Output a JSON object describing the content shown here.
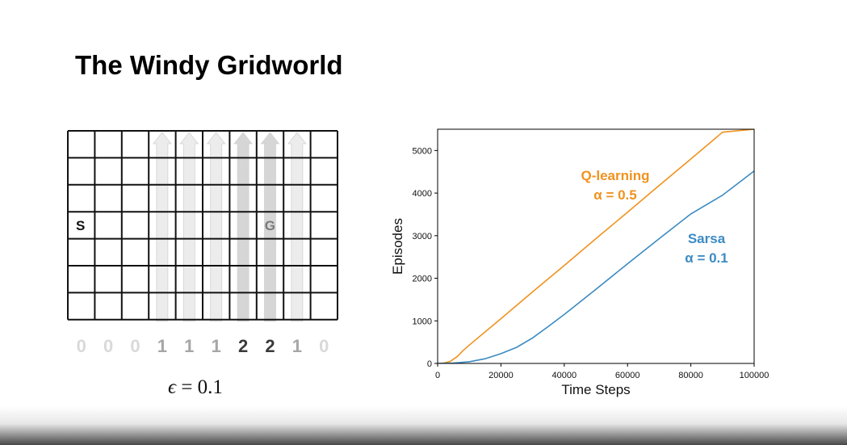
{
  "slide": {
    "title": "The Windy Gridworld"
  },
  "gridworld": {
    "rows": 7,
    "cols": 10,
    "start": {
      "label": "S",
      "row": 3,
      "col": 0
    },
    "goal": {
      "label": "G",
      "row": 3,
      "col": 7
    },
    "wind": [
      0,
      0,
      0,
      1,
      1,
      1,
      2,
      2,
      1,
      0
    ],
    "wind_colors": {
      "0": "#d9d9d9",
      "1": "#a6a6a6",
      "2": "#3a3a3a"
    },
    "arrow_colors": {
      "1": "#ececec",
      "2": "#d4d4d4"
    }
  },
  "epsilon": {
    "symbol": "ϵ",
    "text": " = 0.1"
  },
  "chart_data": {
    "type": "line",
    "xlabel": "Time Steps",
    "ylabel": "Episodes",
    "xlim": [
      0,
      100000
    ],
    "ylim": [
      0,
      5500
    ],
    "xticks": [
      0,
      20000,
      40000,
      60000,
      80000,
      100000
    ],
    "yticks": [
      0,
      1000,
      2000,
      3000,
      4000,
      5000
    ],
    "grid": false,
    "series": [
      {
        "name": "Q-learning",
        "color": "#f0921e",
        "x": [
          0,
          2000,
          4000,
          5000,
          6000,
          7000,
          8000,
          10000,
          20000,
          30000,
          40000,
          50000,
          60000,
          70000,
          80000,
          90000,
          100000
        ],
        "y": [
          0,
          10,
          50,
          100,
          150,
          220,
          300,
          430,
          1050,
          1680,
          2300,
          2930,
          3550,
          4180,
          4800,
          5430,
          5500
        ]
      },
      {
        "name": "Sarsa",
        "color": "#3b8bc2",
        "x": [
          0,
          5000,
          10000,
          15000,
          20000,
          25000,
          30000,
          35000,
          40000,
          50000,
          60000,
          70000,
          80000,
          90000,
          100000
        ],
        "y": [
          0,
          10,
          40,
          110,
          230,
          380,
          600,
          870,
          1150,
          1740,
          2340,
          2930,
          3510,
          3950,
          4520
        ]
      }
    ],
    "annotations": [
      {
        "text": "Q-learning",
        "color": "#f0921e",
        "series": "Q-learning"
      },
      {
        "text": "α = 0.5",
        "color": "#f0921e",
        "series": "Q-learning"
      },
      {
        "text": "Sarsa",
        "color": "#3b8bc2",
        "series": "Sarsa"
      },
      {
        "text": "α = 0.1",
        "color": "#3b8bc2",
        "series": "Sarsa"
      }
    ]
  }
}
